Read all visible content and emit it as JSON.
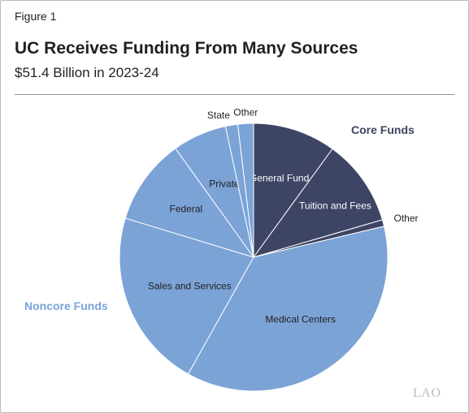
{
  "figure_label": "Figure 1",
  "title": "UC Receives Funding From Many Sources",
  "subtitle": "$51.4 Billion in 2023-24",
  "groups": {
    "core": {
      "label": "Core Funds",
      "color": "#3d4464"
    },
    "noncore": {
      "label": "Noncore Funds",
      "color": "#7ba3d6"
    }
  },
  "logo_text": "LAO",
  "chart_data": {
    "type": "pie",
    "start": "top, clockwise",
    "slices": [
      {
        "label": "General Fund",
        "value": 10.1,
        "group": "core"
      },
      {
        "label": "Tuition and Fees",
        "value": 10.6,
        "group": "core"
      },
      {
        "label": "Other",
        "value": 0.8,
        "group": "core"
      },
      {
        "label": "Medical Centers",
        "value": 37.2,
        "group": "noncore"
      },
      {
        "label": "Sales and Services",
        "value": 21.8,
        "group": "noncore"
      },
      {
        "label": "Federal",
        "value": 10.5,
        "group": "noncore"
      },
      {
        "label": "Private",
        "value": 6.6,
        "group": "noncore"
      },
      {
        "label": "State",
        "value": 1.5,
        "group": "noncore"
      },
      {
        "label": "Other",
        "value": 1.9,
        "group": "noncore"
      }
    ]
  }
}
